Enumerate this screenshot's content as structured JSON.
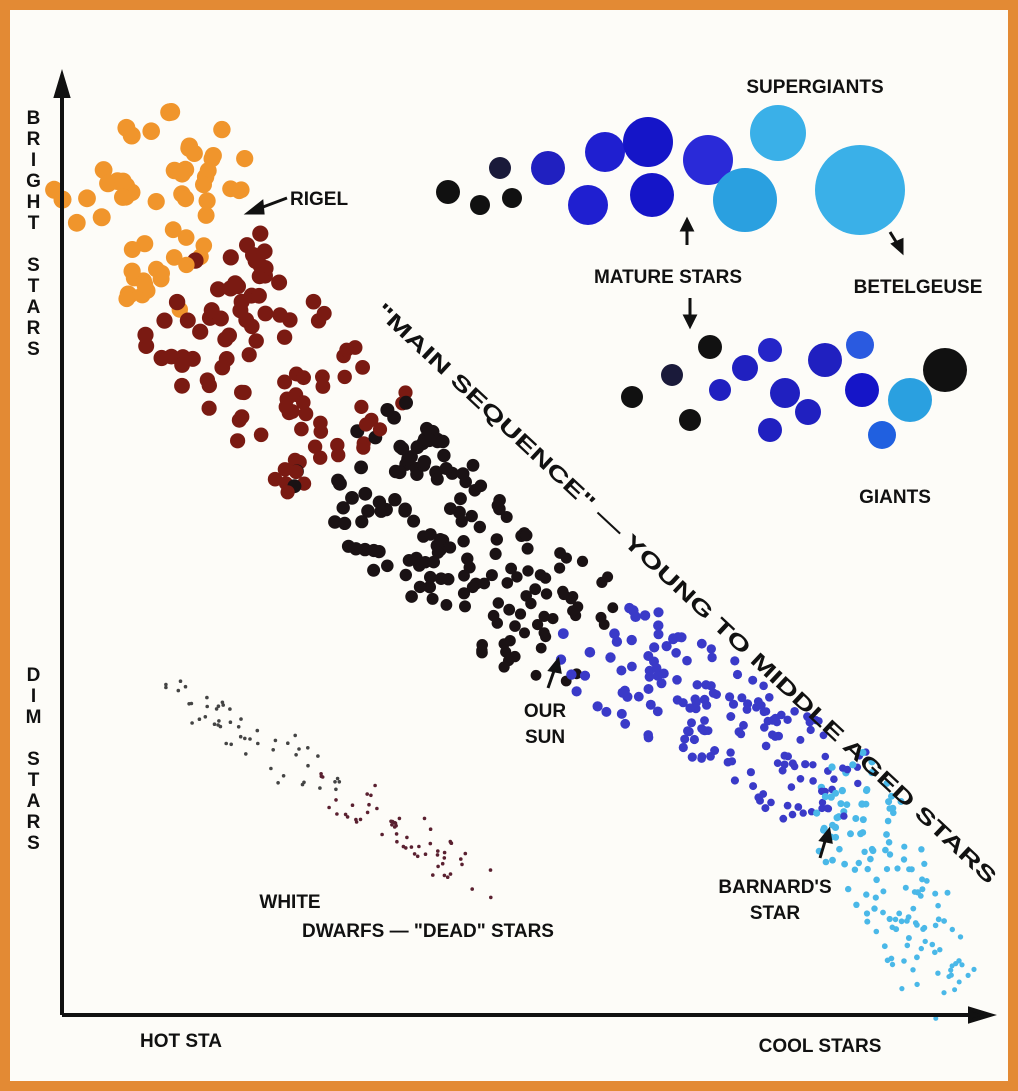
{
  "axes": {
    "y_top": "BRIGHT STARS",
    "y_bottom": "DIM STARS",
    "x_left": "HOT STA",
    "x_right": "COOL STARS"
  },
  "labels": {
    "supergiants": "SUPERGIANTS",
    "rigel": "RIGEL",
    "mature_stars": "MATURE STARS",
    "betelgeuse": "BETELGEUSE",
    "giants": "GIANTS",
    "main_sequence": "\"MAIN SEQUENCE\" — YOUNG TO MIDDLE AGED STARS",
    "our_sun": [
      "OUR",
      "SUN"
    ],
    "barnards_star": [
      "BARNARD'S",
      "STAR"
    ],
    "white_dwarfs": [
      "WHITE",
      "DWARFS — \"DEAD\" STARS"
    ]
  }
}
